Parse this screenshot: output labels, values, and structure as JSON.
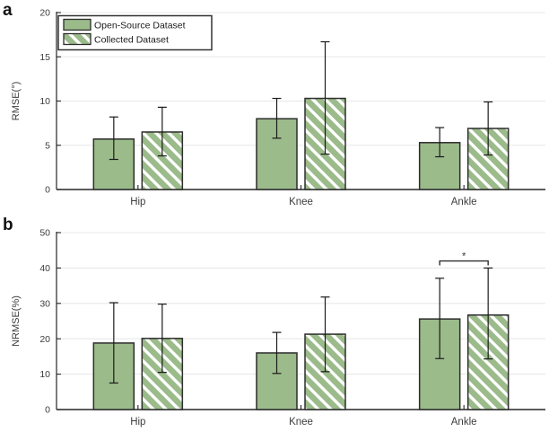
{
  "figure": {
    "panels": [
      {
        "letter": "a"
      },
      {
        "letter": "b"
      }
    ]
  },
  "colors": {
    "bar_green": "#9bbb8a",
    "bar_edge": "#2d2d2d",
    "hatch_stripe": "#ffffff",
    "error_bar": "#1a1a1a",
    "grid": "#e8e8e8",
    "axis": "#262626",
    "text": "#3d3d3d",
    "background": "#ffffff"
  },
  "chart_data": [
    {
      "type": "bar",
      "panel": "a",
      "title": "",
      "xlabel": "",
      "ylabel": "RMSE(°)",
      "ylim": [
        0,
        20
      ],
      "yticks": [
        0,
        5,
        10,
        15,
        20
      ],
      "grid": true,
      "legend_position": "top-left",
      "categories": [
        "Hip",
        "Knee",
        "Ankle"
      ],
      "series": [
        {
          "name": "Open-Source Dataset",
          "style": "solid",
          "values": [
            5.7,
            8.0,
            5.3
          ],
          "error_bottom": [
            3.4,
            5.8,
            3.7
          ],
          "error_top": [
            8.2,
            10.3,
            7.0
          ]
        },
        {
          "name": "Collected Dataset",
          "style": "hatched",
          "values": [
            6.5,
            10.3,
            6.9
          ],
          "error_bottom": [
            3.8,
            4.0,
            3.9
          ],
          "error_top": [
            9.3,
            16.7,
            9.9
          ]
        }
      ]
    },
    {
      "type": "bar",
      "panel": "b",
      "title": "",
      "xlabel": "",
      "ylabel": "NRMSE(%)",
      "ylim": [
        0,
        50
      ],
      "yticks": [
        0,
        10,
        20,
        30,
        40,
        50
      ],
      "grid": true,
      "legend_position": "none",
      "categories": [
        "Hip",
        "Knee",
        "Ankle"
      ],
      "series": [
        {
          "name": "Open-Source Dataset",
          "style": "solid",
          "values": [
            18.8,
            16.0,
            25.6
          ],
          "error_bottom": [
            7.5,
            10.2,
            14.4
          ],
          "error_top": [
            30.2,
            21.8,
            37.1
          ]
        },
        {
          "name": "Collected Dataset",
          "style": "hatched",
          "values": [
            20.1,
            21.3,
            26.7
          ],
          "error_bottom": [
            10.5,
            10.7,
            14.3
          ],
          "error_top": [
            29.8,
            31.8,
            40.0
          ]
        }
      ],
      "significance": {
        "category": "Ankle",
        "label": "*",
        "bracket_y": 42
      }
    }
  ]
}
